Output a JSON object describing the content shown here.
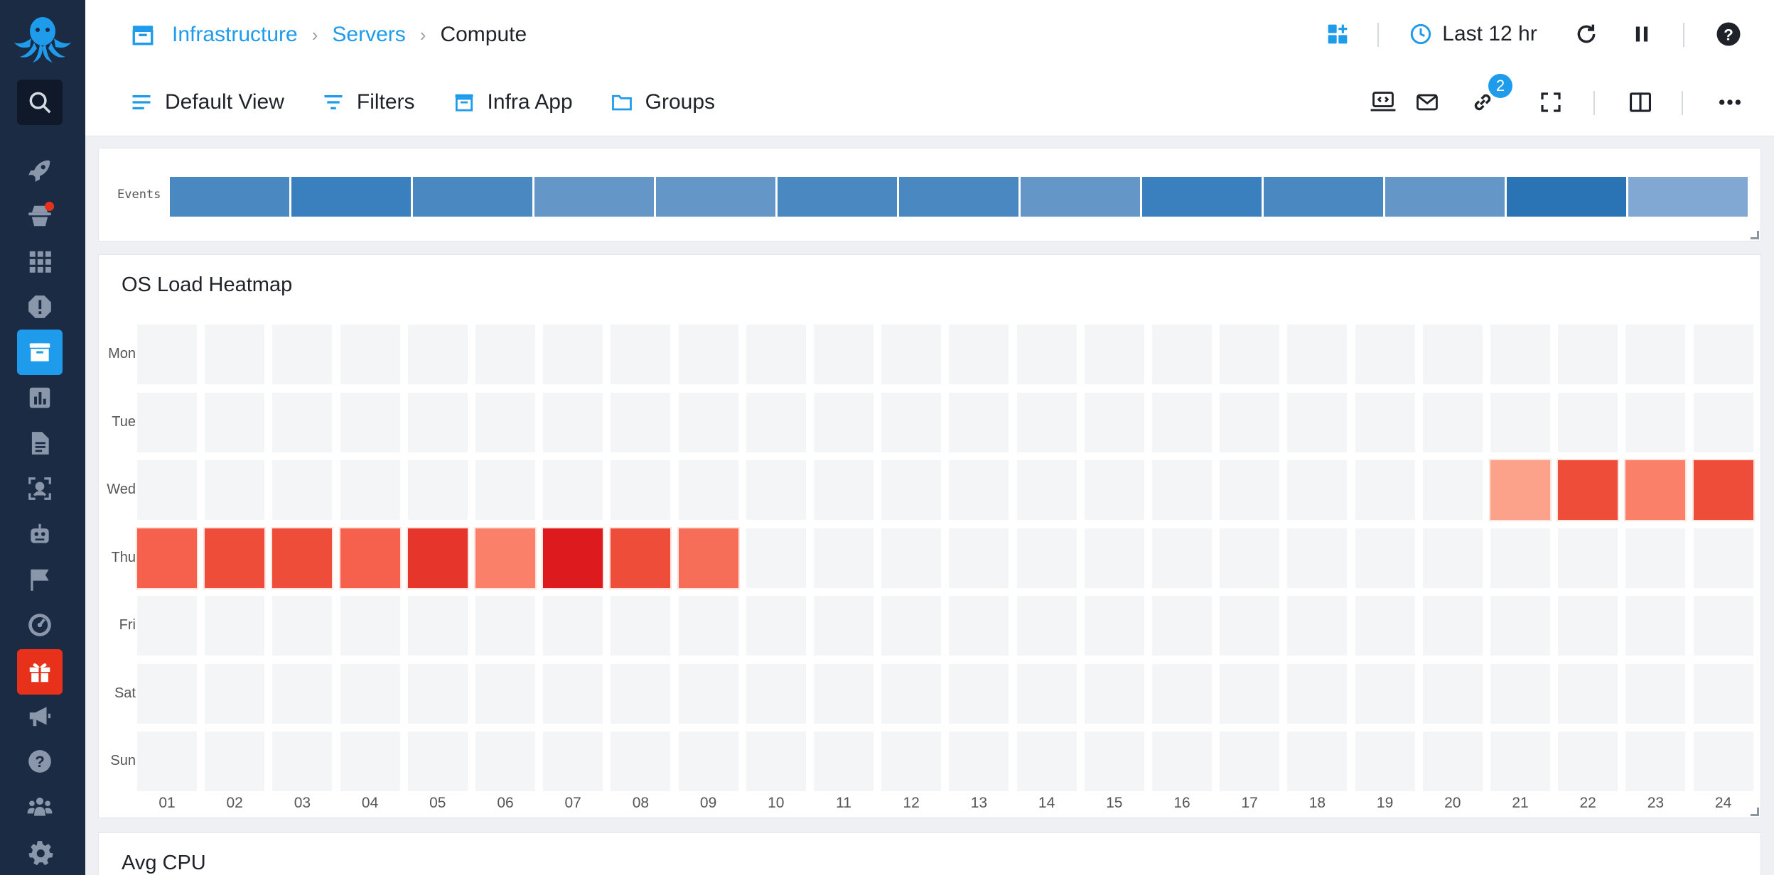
{
  "breadcrumb": {
    "items": [
      "Infrastructure",
      "Servers"
    ],
    "current": "Compute"
  },
  "top_controls": {
    "time_range": "Last 12 hr"
  },
  "toolbar": {
    "default_view": "Default View",
    "filters": "Filters",
    "infra_app": "Infra App",
    "groups": "Groups",
    "link_badge": "2"
  },
  "events_panel": {
    "label": "Events",
    "segments": [
      "#4a88c2",
      "#3a80bf",
      "#4a88c2",
      "#6497c8",
      "#6497c8",
      "#4a88c2",
      "#4a88c2",
      "#6497c8",
      "#3a80bf",
      "#4a88c2",
      "#6497c8",
      "#2a74b5",
      "#80a8d3"
    ]
  },
  "heatmap_panel": {
    "title": "OS Load Heatmap",
    "rows": [
      "Mon",
      "Tue",
      "Wed",
      "Thu",
      "Fri",
      "Sat",
      "Sun"
    ],
    "columns": [
      "01",
      "02",
      "03",
      "04",
      "05",
      "06",
      "07",
      "08",
      "09",
      "10",
      "11",
      "12",
      "13",
      "14",
      "15",
      "16",
      "17",
      "18",
      "19",
      "20",
      "21",
      "22",
      "23",
      "24"
    ],
    "active_cells": [
      {
        "row": 2,
        "col": 20,
        "color": "#fca28a"
      },
      {
        "row": 2,
        "col": 21,
        "color": "#ee4d3a"
      },
      {
        "row": 2,
        "col": 22,
        "color": "#fb8069"
      },
      {
        "row": 2,
        "col": 23,
        "color": "#ee4d3a"
      },
      {
        "row": 3,
        "col": 0,
        "color": "#f5614d"
      },
      {
        "row": 3,
        "col": 1,
        "color": "#ee4d3a"
      },
      {
        "row": 3,
        "col": 2,
        "color": "#ee4d3a"
      },
      {
        "row": 3,
        "col": 3,
        "color": "#f5614d"
      },
      {
        "row": 3,
        "col": 4,
        "color": "#e6352a"
      },
      {
        "row": 3,
        "col": 5,
        "color": "#fb8069"
      },
      {
        "row": 3,
        "col": 6,
        "color": "#dd1b1e"
      },
      {
        "row": 3,
        "col": 7,
        "color": "#ee4d3a"
      },
      {
        "row": 3,
        "col": 8,
        "color": "#f76e58"
      }
    ]
  },
  "cpu_panel": {
    "title": "Avg CPU"
  }
}
